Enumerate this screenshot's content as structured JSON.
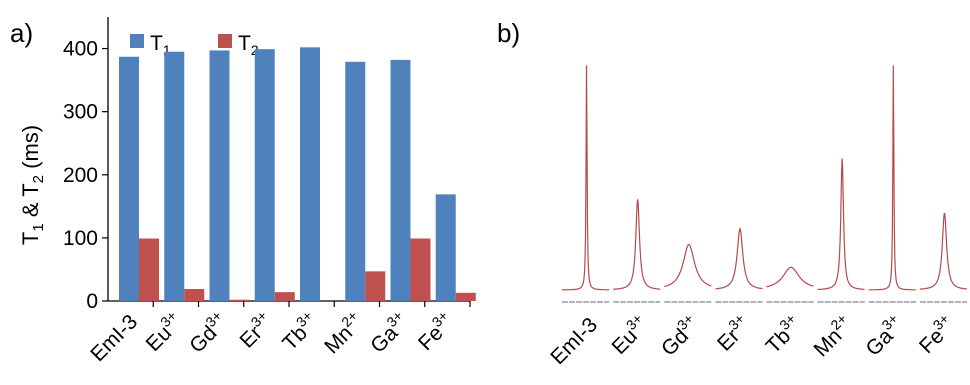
{
  "colors": {
    "t1": "#4f81bd",
    "t2": "#c0504d",
    "spectrum": "#b54a4a",
    "baseline": "#999999"
  },
  "chart_data": [
    {
      "type": "bar",
      "panel_label": "a)",
      "ylabel": {
        "prefix": "T",
        "sub1": "1",
        "mid": " & T",
        "sub2": "2",
        "suffix": " (ms)"
      },
      "ylim": [
        0,
        450
      ],
      "yticks": [
        "0",
        "100",
        "200",
        "300",
        "400"
      ],
      "grid": false,
      "legend_position": "top-left",
      "categories": [
        {
          "base": "EmI-3",
          "sup": ""
        },
        {
          "base": "Eu",
          "sup": "3+"
        },
        {
          "base": "Gd",
          "sup": "3+"
        },
        {
          "base": "Er",
          "sup": "3+"
        },
        {
          "base": "Tb",
          "sup": "3+"
        },
        {
          "base": "Mn",
          "sup": "2+"
        },
        {
          "base": "Ga",
          "sup": "3+"
        },
        {
          "base": "Fe",
          "sup": "3+"
        }
      ],
      "series": [
        {
          "name": {
            "base": "T",
            "sub": "1"
          },
          "values": [
            387,
            395,
            397,
            399,
            402,
            379,
            382,
            169
          ]
        },
        {
          "name": {
            "base": "T",
            "sub": "2"
          },
          "values": [
            99,
            19,
            2,
            14,
            0,
            47,
            99,
            13
          ]
        }
      ]
    },
    {
      "type": "line",
      "panel_label": "b)",
      "description_type": "spectra",
      "categories": [
        {
          "base": "EmI-3",
          "sup": ""
        },
        {
          "base": "Eu",
          "sup": "3+"
        },
        {
          "base": "Gd",
          "sup": "3+"
        },
        {
          "base": "Er",
          "sup": "3+"
        },
        {
          "base": "Tb",
          "sup": "3+"
        },
        {
          "base": "Mn",
          "sup": "2+"
        },
        {
          "base": "Ga",
          "sup": "3+"
        },
        {
          "base": "Fe",
          "sup": "3+"
        }
      ],
      "peak_heights": [
        1.0,
        0.4,
        0.2,
        0.27,
        0.1,
        0.58,
        1.0,
        0.34
      ],
      "peak_widths": [
        0.6,
        2.2,
        7.0,
        3.4,
        10.0,
        1.6,
        0.6,
        2.6
      ]
    }
  ]
}
